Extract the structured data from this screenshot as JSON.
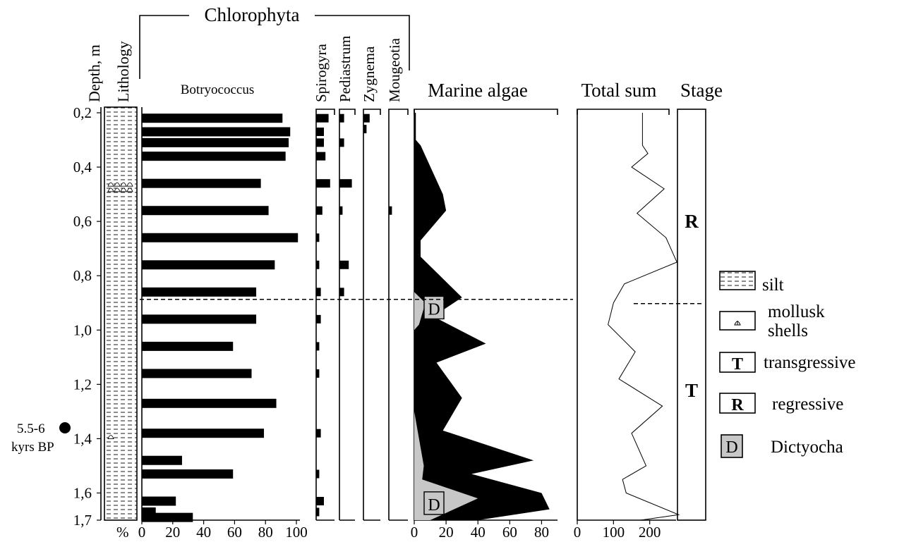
{
  "chart_data": {
    "type": "table",
    "depth_axis": {
      "label": "Depth, m",
      "ticks": [
        0.2,
        0.4,
        0.6,
        0.8,
        1.0,
        1.2,
        1.4,
        1.6,
        1.7
      ],
      "tick_labels": [
        "0,2",
        "0,4",
        "0,6",
        "0,8",
        "1,0",
        "1,2",
        "1,4",
        "1,6",
        "1,7"
      ],
      "ylim": [
        0.2,
        1.7
      ]
    },
    "lithology": {
      "label": "Lithology",
      "unit_label": "%",
      "shell_depths": [
        0.46,
        0.48,
        1.39
      ]
    },
    "group_label": "Chlorophyta",
    "botryococcus": {
      "name": "Botryococcus",
      "xlim": [
        0,
        100
      ],
      "x_ticks": [
        0,
        20,
        40,
        60,
        80,
        100
      ],
      "depths": [
        0.22,
        0.27,
        0.31,
        0.36,
        0.46,
        0.56,
        0.66,
        0.76,
        0.86,
        0.96,
        1.06,
        1.16,
        1.27,
        1.38,
        1.48,
        1.53,
        1.63,
        1.67,
        1.69
      ],
      "values": [
        91,
        96,
        95,
        93,
        77,
        82,
        101,
        86,
        74,
        74,
        59,
        71,
        87,
        79,
        26,
        59,
        22,
        9,
        33
      ]
    },
    "minor_taxa": [
      {
        "name": "Spirogyra",
        "depths": [
          0.22,
          0.27,
          0.31,
          0.36,
          0.46,
          0.56,
          0.66,
          0.76,
          0.86,
          0.96,
          1.06,
          1.16,
          1.38,
          1.53,
          1.63,
          1.67
        ],
        "values": [
          8,
          5,
          5,
          6,
          9,
          4,
          2,
          2,
          3,
          3,
          2,
          2,
          3,
          2,
          5,
          2
        ]
      },
      {
        "name": "Pediastrum",
        "depths": [
          0.22,
          0.31,
          0.46,
          0.56,
          0.76,
          0.86
        ],
        "values": [
          3,
          3,
          8,
          2,
          6,
          3
        ]
      },
      {
        "name": "Zygnema",
        "depths": [
          0.22,
          0.26
        ],
        "values": [
          4,
          2
        ]
      },
      {
        "name": "Mougeotia",
        "depths": [
          0.56
        ],
        "values": [
          2
        ]
      }
    ],
    "marine_algae": {
      "title": "Marine algae",
      "xlim": [
        0,
        90
      ],
      "x_ticks": [
        0,
        20,
        40,
        60,
        80
      ],
      "total": {
        "depths": [
          0.2,
          0.3,
          0.32,
          0.5,
          0.56,
          0.67,
          0.73,
          0.88,
          0.95,
          1.05,
          1.12,
          1.25,
          1.37,
          1.48,
          1.53,
          1.6,
          1.66,
          1.7
        ],
        "values": [
          1,
          1,
          4,
          18,
          20,
          4,
          4,
          30,
          12,
          45,
          14,
          30,
          18,
          75,
          36,
          80,
          85,
          40
        ]
      },
      "dictyocha": {
        "label": "D",
        "depths": [
          0.2,
          0.86,
          0.9,
          0.98,
          1.0,
          1.3,
          1.5,
          1.55,
          1.62,
          1.7
        ],
        "values": [
          0,
          0,
          7,
          3,
          0,
          0,
          6,
          5,
          40,
          10
        ]
      },
      "d_marker_depths": [
        0.92,
        1.64
      ]
    },
    "total_sum": {
      "title": "Total sum",
      "xlim": [
        0,
        270
      ],
      "x_ticks": [
        0,
        100,
        200
      ],
      "depths": [
        0.2,
        0.32,
        0.35,
        0.4,
        0.48,
        0.57,
        0.66,
        0.75,
        0.83,
        0.9,
        0.98,
        1.08,
        1.18,
        1.28,
        1.38,
        1.5,
        1.55,
        1.6,
        1.68,
        1.7
      ],
      "values": [
        180,
        180,
        195,
        150,
        240,
        165,
        245,
        275,
        130,
        100,
        85,
        160,
        115,
        235,
        150,
        190,
        125,
        135,
        280,
        175
      ]
    },
    "stage": {
      "title": "Stage",
      "labels": [
        "R",
        "T"
      ],
      "boundary_depth": 0.9
    },
    "date_annotation": {
      "line1": "5.5-6",
      "line2": "kyrs BP",
      "depth": 1.4
    },
    "legend": [
      {
        "key": "silt",
        "label": "silt"
      },
      {
        "key": "shells",
        "label": "mollusk shells",
        "line1": "mollusk",
        "line2": "shells"
      },
      {
        "key": "T",
        "label": "transgressive",
        "symbol": "T"
      },
      {
        "key": "R",
        "label": "regressive",
        "symbol": "R"
      },
      {
        "key": "D",
        "label": "Dictyocha",
        "symbol": "D"
      }
    ]
  }
}
